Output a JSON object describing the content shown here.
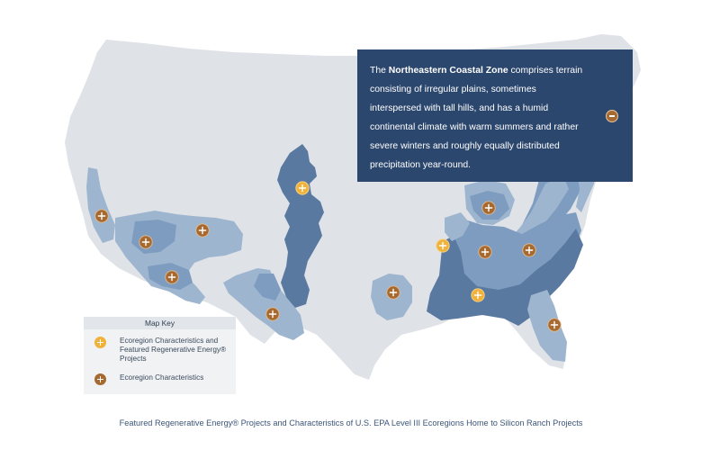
{
  "info_panel": {
    "intro": "The ",
    "zone_name": "Northeastern Coastal Zone",
    "description": " comprises terrain consisting of irregular plains, sometimes interspersed with tall hills, and has a humid continental climate with warm summers and rather severe winters and roughly equally distributed precipitation year-round.",
    "collapse_icon": "minus-circle-icon"
  },
  "map_key": {
    "title": "Map Key",
    "items": [
      {
        "label": "Ecoregion Characteristics and Featured Regenerative Energy® Projects",
        "icon": "plus-circle-icon",
        "color": "#f0b23a"
      },
      {
        "label": "Ecoregion Characteristics",
        "icon": "plus-circle-icon",
        "color": "#a6692f"
      }
    ]
  },
  "caption": "Featured Regenerative Energy® Projects and Characteristics of U.S. EPA Level III Ecoregions Home to Silicon Ranch Projects",
  "colors": {
    "land": "#dfe2e7",
    "ecoregion_light": "#9db5cf",
    "ecoregion_mid": "#7e9cbf",
    "ecoregion_dark": "#5a79a0",
    "featured_marker": "#f0b23a",
    "ecoregion_marker": "#a6692f",
    "panel_bg": "#2c476e"
  },
  "markers": [
    {
      "name": "marker-california",
      "type": "ecoregion"
    },
    {
      "name": "marker-southern-nevada",
      "type": "ecoregion"
    },
    {
      "name": "marker-utah",
      "type": "ecoregion"
    },
    {
      "name": "marker-arizona",
      "type": "ecoregion"
    },
    {
      "name": "marker-west-texas",
      "type": "ecoregion"
    },
    {
      "name": "marker-great-plains",
      "type": "featured"
    },
    {
      "name": "marker-east-texas",
      "type": "ecoregion"
    },
    {
      "name": "marker-mid-south",
      "type": "featured"
    },
    {
      "name": "marker-ohio-valley",
      "type": "ecoregion"
    },
    {
      "name": "marker-tennessee",
      "type": "ecoregion"
    },
    {
      "name": "marker-carolinas",
      "type": "ecoregion"
    },
    {
      "name": "marker-gulf-coast",
      "type": "featured"
    },
    {
      "name": "marker-florida",
      "type": "ecoregion"
    },
    {
      "name": "marker-northeast",
      "type": "ecoregion"
    }
  ]
}
